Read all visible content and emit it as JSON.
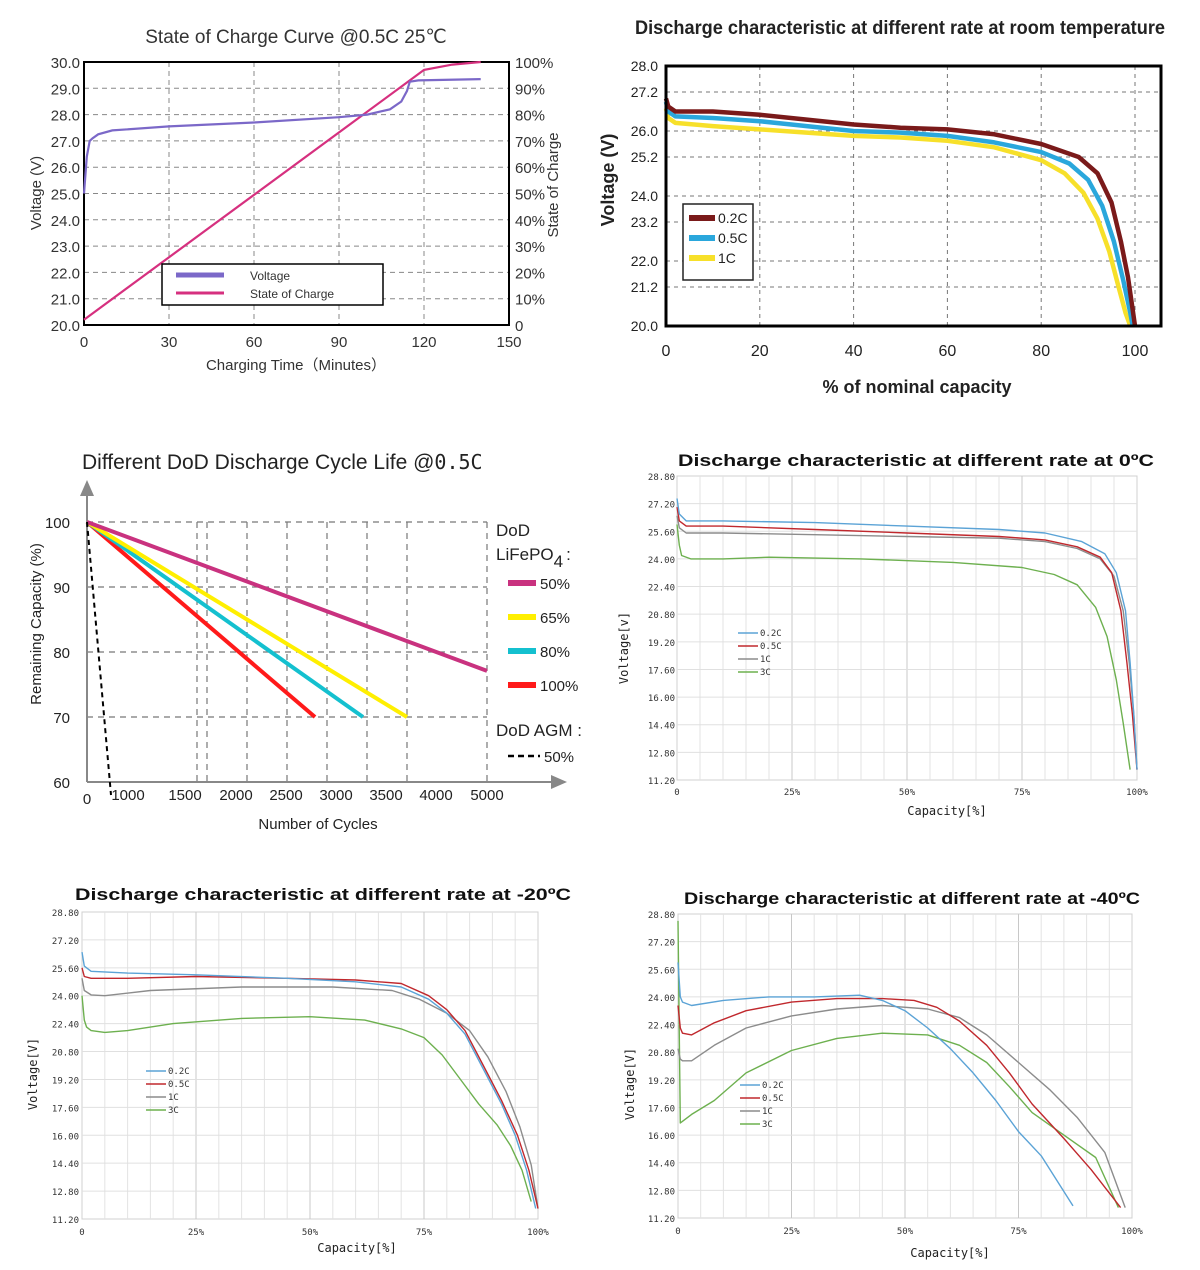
{
  "colors": {
    "voltage_purple": "#7b68c8",
    "soc_magenta": "#d6307f",
    "dark_red": "#7a1a1a",
    "blue": "#2aa7dc",
    "yellow": "#f7e02a",
    "dod50": "#c9327f",
    "dod65": "#ffef00",
    "dod80": "#14c0cf",
    "dod100": "#ff1a1a",
    "c02": "#5ba3d6",
    "c05": "#c0282d",
    "c1": "#8c8c8c",
    "c3": "#6db04f"
  },
  "chart_data": [
    {
      "id": "soc",
      "type": "line",
      "title": "State of Charge Curve @0.5C 25℃",
      "xlabel": "Charging Time（Minutes）",
      "ylabel": "Voltage (V)",
      "y2label": "State of Charge",
      "xlim": [
        0,
        150
      ],
      "ylim": [
        20,
        30
      ],
      "y2lim": [
        0,
        100
      ],
      "x_ticks": [
        "0",
        "30",
        "60",
        "90",
        "120",
        "150"
      ],
      "y_ticks": [
        "20.0",
        "21.0",
        "22.0",
        "23.0",
        "24.0",
        "25.0",
        "26.0",
        "27.0",
        "28.0",
        "29.0",
        "30.0"
      ],
      "y2_ticks": [
        "0",
        "10%",
        "20%",
        "30%",
        "40%",
        "50%",
        "60%",
        "70%",
        "80%",
        "90%",
        "100%"
      ],
      "legend_position": "bottom-center",
      "series": [
        {
          "name": "Voltage",
          "axis": "left",
          "x": [
            0,
            1,
            2,
            3,
            5,
            10,
            30,
            60,
            90,
            100,
            108,
            112,
            114,
            115,
            118,
            140
          ],
          "y": [
            25.0,
            26.4,
            27.0,
            27.1,
            27.25,
            27.4,
            27.55,
            27.7,
            27.9,
            28.0,
            28.2,
            28.5,
            28.9,
            29.25,
            29.3,
            29.35
          ]
        },
        {
          "name": "State of Charge",
          "axis": "right",
          "x": [
            0,
            115,
            120,
            130,
            140
          ],
          "y": [
            2,
            93,
            97,
            99,
            100
          ]
        }
      ]
    },
    {
      "id": "room",
      "type": "line",
      "title": "Discharge characteristic at different rate at room temperature",
      "xlabel": "% of nominal capacity",
      "ylabel": "Voltage (V)",
      "xlim": [
        0,
        100
      ],
      "ylim": [
        20,
        28
      ],
      "x_ticks": [
        "0",
        "20",
        "40",
        "60",
        "80",
        "100"
      ],
      "y_ticks": [
        "20.0",
        "21.2",
        "22.0",
        "23.2",
        "24.0",
        "25.2",
        "26.0",
        "27.2",
        "28.0"
      ],
      "legend_position": "bottom-left",
      "series": [
        {
          "name": "0.2C",
          "x": [
            0,
            0.5,
            2,
            10,
            20,
            30,
            40,
            50,
            60,
            70,
            80,
            88,
            92,
            95,
            97,
            98.5,
            99.5,
            100
          ],
          "y": [
            27.0,
            26.75,
            26.6,
            26.6,
            26.5,
            26.35,
            26.2,
            26.1,
            26.05,
            25.9,
            25.6,
            25.2,
            24.7,
            23.8,
            22.6,
            21.5,
            20.5,
            20.0
          ]
        },
        {
          "name": "0.5C",
          "x": [
            0,
            0.5,
            2,
            10,
            20,
            30,
            40,
            50,
            60,
            70,
            80,
            86,
            90,
            93,
            95.5,
            97.5,
            99,
            99.5
          ],
          "y": [
            26.9,
            26.6,
            26.45,
            26.4,
            26.3,
            26.15,
            26.0,
            25.95,
            25.85,
            25.65,
            25.35,
            25.0,
            24.5,
            23.7,
            22.6,
            21.4,
            20.4,
            20.0
          ]
        },
        {
          "name": "1C",
          "x": [
            0,
            0.5,
            2,
            10,
            20,
            30,
            40,
            50,
            60,
            70,
            80,
            85,
            89,
            92,
            94.5,
            96.5,
            98,
            99
          ],
          "y": [
            26.7,
            26.4,
            26.25,
            26.15,
            26.05,
            25.95,
            25.85,
            25.8,
            25.7,
            25.5,
            25.1,
            24.7,
            24.1,
            23.3,
            22.3,
            21.2,
            20.4,
            20.0
          ]
        }
      ]
    },
    {
      "id": "dod",
      "type": "line",
      "title": "Different DoD Discharge Cycle Life @",
      "title_rate": "0.5C",
      "xlabel": "Number of Cycles",
      "ylabel": "Remaining Capacity (%)",
      "xlim": [
        0,
        5000
      ],
      "ylim": [
        60,
        100
      ],
      "x_ticks": [
        "0",
        "1000",
        "1500",
        "2000",
        "2500",
        "3000",
        "3500",
        "4000",
        "5000"
      ],
      "y_ticks": [
        "60",
        "70",
        "80",
        "90",
        "100"
      ],
      "legend_position": "right",
      "legend_heading_1": "DoD",
      "legend_heading_2": "LiFePO",
      "legend_heading_sub": "4",
      "legend_heading_colon": ":",
      "legend_agm_heading": "DoD AGM :",
      "series": [
        {
          "name": "50%",
          "group": "LiFePO4",
          "x": [
            0,
            5000
          ],
          "y": [
            100,
            77.1
          ]
        },
        {
          "name": "65%",
          "group": "LiFePO4",
          "x": [
            0,
            4000
          ],
          "y": [
            100,
            70
          ]
        },
        {
          "name": "80%",
          "group": "LiFePO4",
          "x": [
            0,
            3450
          ],
          "y": [
            100,
            70
          ]
        },
        {
          "name": "100%",
          "group": "LiFePO4",
          "x": [
            0,
            2850
          ],
          "y": [
            100,
            70
          ]
        },
        {
          "name": "50%",
          "group": "AGM",
          "x": [
            0,
            300
          ],
          "y": [
            100,
            58
          ]
        }
      ]
    },
    {
      "id": "zero",
      "type": "line",
      "title": "Discharge characteristic at different rate at 0ºC",
      "xlabel": "Capacity[%]",
      "ylabel": "Voltage[v]",
      "xlim": [
        0,
        100
      ],
      "ylim": [
        11.2,
        28.8
      ],
      "x_ticks": [
        "0",
        "25%",
        "50%",
        "75%",
        "100%"
      ],
      "y_ticks": [
        "11.20",
        "12.80",
        "14.40",
        "16.00",
        "17.60",
        "19.20",
        "20.80",
        "22.40",
        "24.00",
        "25.60",
        "27.20",
        "28.80"
      ],
      "legend_position": "center-left",
      "series": [
        {
          "name": "0.2C",
          "x": [
            0,
            0.5,
            2,
            10,
            30,
            50,
            70,
            80,
            88,
            93,
            95.5,
            97.5,
            98.5,
            99.3,
            100
          ],
          "y": [
            27.5,
            26.6,
            26.2,
            26.2,
            26.1,
            25.9,
            25.7,
            25.5,
            25.0,
            24.3,
            23.2,
            21.0,
            18.0,
            15.0,
            11.8
          ]
        },
        {
          "name": "0.5C",
          "x": [
            0,
            0.5,
            2,
            10,
            30,
            50,
            70,
            80,
            87,
            92,
            94.5,
            96.5,
            97.8,
            99,
            100
          ],
          "y": [
            27.0,
            26.2,
            25.9,
            25.9,
            25.7,
            25.5,
            25.3,
            25.1,
            24.7,
            24.1,
            23.2,
            21.0,
            18.0,
            15.0,
            11.8
          ]
        },
        {
          "name": "1C",
          "x": [
            0,
            0.5,
            2,
            10,
            30,
            50,
            70,
            80,
            87,
            92,
            95,
            97,
            98.3,
            99.3,
            100
          ],
          "y": [
            26.5,
            25.8,
            25.5,
            25.5,
            25.4,
            25.3,
            25.2,
            25.0,
            24.6,
            24.0,
            23.0,
            21.0,
            18.0,
            15.0,
            11.8
          ]
        },
        {
          "name": "3C",
          "x": [
            0,
            0.5,
            1,
            3,
            10,
            20,
            40,
            60,
            75,
            82,
            87,
            91,
            93.5,
            95.5,
            97,
            98.5
          ],
          "y": [
            26.0,
            24.8,
            24.2,
            24.0,
            24.0,
            24.1,
            24.0,
            23.8,
            23.5,
            23.1,
            22.5,
            21.2,
            19.5,
            17.0,
            14.5,
            11.8
          ]
        }
      ]
    },
    {
      "id": "minus20",
      "type": "line",
      "title": "Discharge characteristic at different rate at -20ºC",
      "xlabel": "Capacity[%]",
      "ylabel": "Voltage[V]",
      "xlim": [
        0,
        100
      ],
      "ylim": [
        11.2,
        28.8
      ],
      "x_ticks": [
        "0",
        "25%",
        "50%",
        "75%",
        "100%"
      ],
      "y_ticks": [
        "11.20",
        "12.80",
        "14.40",
        "16.00",
        "17.60",
        "19.20",
        "20.80",
        "22.40",
        "24.00",
        "25.60",
        "27.20",
        "28.80"
      ],
      "legend_position": "center-left",
      "series": [
        {
          "name": "0.2C",
          "x": [
            0,
            0.5,
            2,
            10,
            25,
            45,
            60,
            70,
            76,
            80,
            84,
            88,
            92,
            95,
            97.5,
            99.5
          ],
          "y": [
            26.5,
            25.7,
            25.4,
            25.3,
            25.2,
            25.0,
            24.8,
            24.5,
            23.8,
            23.0,
            21.8,
            19.8,
            17.8,
            16.0,
            14.0,
            11.8
          ]
        },
        {
          "name": "0.5C",
          "x": [
            0,
            0.5,
            2,
            10,
            25,
            45,
            60,
            70,
            76,
            80,
            84,
            88,
            92,
            95.5,
            98,
            100
          ],
          "y": [
            25.6,
            25.1,
            25.0,
            25.0,
            25.1,
            25.0,
            24.9,
            24.7,
            24.0,
            23.2,
            22.0,
            20.0,
            18.0,
            16.0,
            14.0,
            11.8
          ]
        },
        {
          "name": "1C",
          "x": [
            0,
            0.5,
            2,
            5,
            15,
            35,
            55,
            68,
            74,
            80,
            85,
            89,
            93,
            96,
            98.5,
            100
          ],
          "y": [
            25.0,
            24.3,
            24.05,
            24.0,
            24.3,
            24.5,
            24.5,
            24.3,
            23.8,
            23.0,
            22.0,
            20.5,
            18.5,
            16.5,
            14.3,
            11.8
          ]
        },
        {
          "name": "3C",
          "x": [
            0,
            0.5,
            1,
            2,
            5,
            10,
            20,
            35,
            50,
            62,
            70,
            75,
            79,
            83,
            87,
            91,
            94,
            96.5,
            98.5
          ],
          "y": [
            24.0,
            22.6,
            22.2,
            22.0,
            21.9,
            22.0,
            22.4,
            22.7,
            22.8,
            22.6,
            22.1,
            21.6,
            20.6,
            19.2,
            17.8,
            16.6,
            15.4,
            14.0,
            12.2
          ]
        }
      ]
    },
    {
      "id": "minus40",
      "type": "line",
      "title": "Discharge characteristic at different rate at -40ºC",
      "xlabel": "Capacity[%]",
      "ylabel": "Voltage[V]",
      "xlim": [
        0,
        100
      ],
      "ylim": [
        11.2,
        28.8
      ],
      "x_ticks": [
        "0",
        "25%",
        "50%",
        "75%",
        "100%"
      ],
      "y_ticks": [
        "11.20",
        "12.80",
        "14.40",
        "16.00",
        "17.60",
        "19.20",
        "20.80",
        "22.40",
        "24.00",
        "25.60",
        "27.20",
        "28.80"
      ],
      "legend_position": "center-left",
      "series": [
        {
          "name": "0.2C",
          "x": [
            0,
            0.5,
            1,
            3,
            10,
            20,
            30,
            40,
            45,
            50,
            55,
            60,
            65,
            70,
            75,
            80,
            87
          ],
          "y": [
            26.0,
            24.0,
            23.7,
            23.5,
            23.8,
            24.0,
            24.0,
            24.1,
            23.8,
            23.2,
            22.2,
            21.0,
            19.6,
            18.0,
            16.2,
            14.8,
            11.9
          ]
        },
        {
          "name": "0.5C",
          "x": [
            0,
            0.5,
            1,
            3,
            8,
            15,
            25,
            35,
            45,
            52,
            57,
            62,
            68,
            73,
            78,
            85,
            91,
            97.5
          ],
          "y": [
            23.5,
            22.2,
            21.9,
            21.8,
            22.5,
            23.2,
            23.7,
            23.9,
            23.9,
            23.8,
            23.4,
            22.6,
            21.2,
            19.6,
            17.8,
            15.8,
            14.0,
            11.8
          ]
        },
        {
          "name": "1C",
          "x": [
            0,
            0.5,
            1,
            3,
            8,
            15,
            25,
            35,
            45,
            55,
            62,
            68,
            75,
            82,
            88,
            94,
            98.5
          ],
          "y": [
            21.0,
            20.4,
            20.3,
            20.3,
            21.2,
            22.2,
            22.9,
            23.3,
            23.5,
            23.3,
            22.8,
            21.8,
            20.2,
            18.6,
            17.0,
            15.0,
            11.8
          ]
        },
        {
          "name": "3C",
          "x": [
            0,
            0.5,
            1,
            3,
            8,
            15,
            25,
            35,
            45,
            55,
            62,
            68,
            73,
            78,
            85,
            92,
            97
          ],
          "y": [
            28.4,
            16.7,
            16.8,
            17.2,
            18.0,
            19.6,
            20.9,
            21.6,
            21.9,
            21.8,
            21.2,
            20.2,
            18.8,
            17.3,
            16.0,
            14.7,
            11.8
          ]
        }
      ]
    }
  ]
}
